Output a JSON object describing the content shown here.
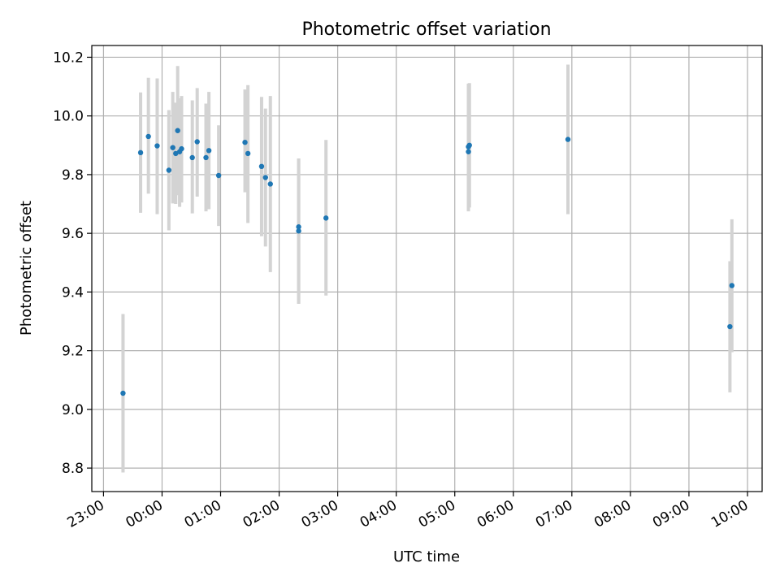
{
  "chart_data": {
    "type": "scatter",
    "title": "Photometric offset variation",
    "xlabel": "UTC time",
    "ylabel": "Photometric offset",
    "grid": true,
    "x_ticks": [
      "23:00",
      "00:00",
      "01:00",
      "02:00",
      "03:00",
      "04:00",
      "05:00",
      "06:00",
      "07:00",
      "08:00",
      "09:00",
      "10:00"
    ],
    "xlim": [
      "22:48",
      "10:15"
    ],
    "ylim": [
      8.72,
      10.24
    ],
    "y_ticks": [
      8.8,
      9.0,
      9.2,
      9.4,
      9.6,
      9.8,
      10.0,
      10.2
    ],
    "colors": {
      "point": "#1f77b4",
      "errorbar": "#d3d3d3",
      "grid": "#b0b0b0"
    },
    "points": [
      {
        "x": "23:20",
        "y": 9.055,
        "ylo": 8.785,
        "yhi": 9.325
      },
      {
        "x": "23:38",
        "y": 9.875,
        "ylo": 9.67,
        "yhi": 10.08
      },
      {
        "x": "23:46",
        "y": 9.93,
        "ylo": 9.735,
        "yhi": 10.13
      },
      {
        "x": "23:55",
        "y": 9.898,
        "ylo": 9.665,
        "yhi": 10.128
      },
      {
        "x": "00:07",
        "y": 9.815,
        "ylo": 9.61,
        "yhi": 10.02
      },
      {
        "x": "00:11",
        "y": 9.892,
        "ylo": 9.702,
        "yhi": 10.082
      },
      {
        "x": "00:14",
        "y": 9.872,
        "ylo": 9.7,
        "yhi": 10.045
      },
      {
        "x": "00:16",
        "y": 9.95,
        "ylo": 9.73,
        "yhi": 10.17
      },
      {
        "x": "00:18",
        "y": 9.878,
        "ylo": 9.69,
        "yhi": 10.06
      },
      {
        "x": "00:20",
        "y": 9.888,
        "ylo": 9.705,
        "yhi": 10.068
      },
      {
        "x": "00:31",
        "y": 9.858,
        "ylo": 9.668,
        "yhi": 10.053
      },
      {
        "x": "00:36",
        "y": 9.912,
        "ylo": 9.725,
        "yhi": 10.095
      },
      {
        "x": "00:45",
        "y": 9.858,
        "ylo": 9.675,
        "yhi": 10.042
      },
      {
        "x": "00:48",
        "y": 9.882,
        "ylo": 9.682,
        "yhi": 10.082
      },
      {
        "x": "00:58",
        "y": 9.797,
        "ylo": 9.625,
        "yhi": 9.968
      },
      {
        "x": "01:25",
        "y": 9.91,
        "ylo": 9.74,
        "yhi": 10.09
      },
      {
        "x": "01:28",
        "y": 9.872,
        "ylo": 9.635,
        "yhi": 10.105
      },
      {
        "x": "01:42",
        "y": 9.828,
        "ylo": 9.59,
        "yhi": 10.065
      },
      {
        "x": "01:46",
        "y": 9.79,
        "ylo": 9.555,
        "yhi": 10.025
      },
      {
        "x": "01:51",
        "y": 9.768,
        "ylo": 9.468,
        "yhi": 10.068
      },
      {
        "x": "02:20",
        "y": 9.622,
        "ylo": 9.36,
        "yhi": 9.855
      },
      {
        "x": "02:20",
        "y": 9.608,
        "ylo": 9.36,
        "yhi": 9.855
      },
      {
        "x": "02:48",
        "y": 9.652,
        "ylo": 9.388,
        "yhi": 9.918
      },
      {
        "x": "05:14",
        "y": 9.895,
        "ylo": 9.688,
        "yhi": 10.11
      },
      {
        "x": "05:15",
        "y": 9.9,
        "ylo": 9.688,
        "yhi": 10.112
      },
      {
        "x": "05:14",
        "y": 9.878,
        "ylo": 9.675,
        "yhi": 10.08
      },
      {
        "x": "06:56",
        "y": 9.92,
        "ylo": 9.665,
        "yhi": 10.175
      },
      {
        "x": "09:42",
        "y": 9.282,
        "ylo": 9.058,
        "yhi": 9.505
      },
      {
        "x": "09:44",
        "y": 9.422,
        "ylo": 9.195,
        "yhi": 9.648
      }
    ]
  }
}
